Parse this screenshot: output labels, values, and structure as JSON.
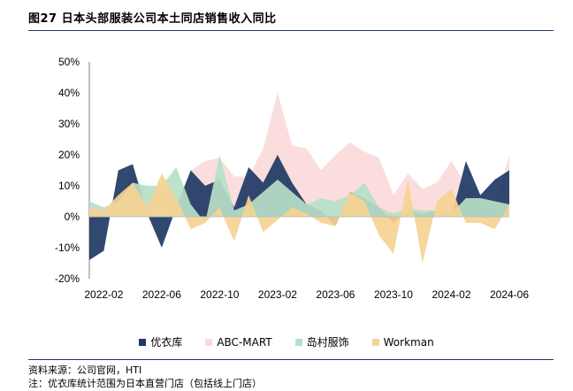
{
  "title": "图27 日本头部服装公司本土同店销售收入同比",
  "source_note": "资料来源：公司官网，HTI",
  "footnote": "注：优衣库统计范围为日本直营门店（包括线上门店）",
  "chart_data": {
    "type": "area",
    "title": "图27 日本头部服装公司本土同店销售收入同比",
    "xlabel": "",
    "ylabel": "",
    "ylim": [
      -20,
      50
    ],
    "yticks": [
      -20,
      -10,
      0,
      10,
      20,
      30,
      40,
      50
    ],
    "ytick_labels": [
      "-20%",
      "-10%",
      "0%",
      "10%",
      "20%",
      "30%",
      "40%",
      "50%"
    ],
    "x": [
      "2022-01",
      "2022-02",
      "2022-03",
      "2022-04",
      "2022-05",
      "2022-06",
      "2022-07",
      "2022-08",
      "2022-09",
      "2022-10",
      "2022-11",
      "2022-12",
      "2023-01",
      "2023-02",
      "2023-03",
      "2023-04",
      "2023-05",
      "2023-06",
      "2023-07",
      "2023-08",
      "2023-09",
      "2023-10",
      "2023-11",
      "2023-12",
      "2024-01",
      "2024-02",
      "2024-03",
      "2024-04",
      "2024-05",
      "2024-06"
    ],
    "xtick_labels": [
      "2022-02",
      "2022-06",
      "2022-10",
      "2023-02",
      "2023-06",
      "2023-10",
      "2024-02",
      "2024-06"
    ],
    "xtick_indices": [
      1,
      5,
      9,
      13,
      17,
      21,
      25,
      29
    ],
    "grid": false,
    "legend_position": "bottom",
    "series": [
      {
        "name": "ABC-MART",
        "color": "#fbdada",
        "values": [
          2,
          0,
          3,
          13,
          8,
          6,
          3,
          15,
          18,
          19,
          13,
          13,
          22,
          40,
          23,
          22,
          15,
          20,
          24,
          21,
          19,
          7,
          14,
          9,
          11,
          18,
          10,
          6,
          3,
          20
        ]
      },
      {
        "name": "优衣库",
        "color": "#1f3864",
        "values": [
          -14,
          -11,
          15,
          17,
          1,
          -10,
          3,
          15,
          10,
          12,
          3,
          16,
          11,
          20,
          11,
          4,
          2,
          -3,
          8,
          6,
          3,
          -2,
          2,
          1,
          2,
          0,
          18,
          7,
          12,
          15
        ]
      },
      {
        "name": "岛村服饰",
        "color": "#b7dfc7",
        "values": [
          5,
          3,
          5,
          11,
          10,
          10,
          16,
          4,
          -2,
          20,
          2,
          4,
          8,
          12,
          8,
          4,
          6,
          5,
          7,
          11,
          3,
          1,
          3,
          2,
          2,
          1,
          6,
          6,
          5,
          4
        ]
      },
      {
        "name": "Workman",
        "color": "#f5d393",
        "values": [
          3,
          2,
          7,
          11,
          3,
          14,
          6,
          -4,
          -2,
          3,
          -8,
          7,
          -5,
          -1,
          3,
          1,
          -2,
          -3,
          8,
          5,
          -6,
          -12,
          12,
          -15,
          5,
          9,
          -2,
          -2,
          -4,
          4
        ]
      }
    ]
  }
}
